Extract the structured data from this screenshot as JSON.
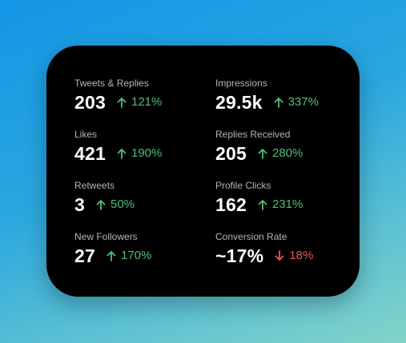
{
  "stats": [
    {
      "label": "Tweets & Replies",
      "value": "203",
      "change": "121%",
      "direction": "up"
    },
    {
      "label": "Impressions",
      "value": "29.5k",
      "change": "337%",
      "direction": "up"
    },
    {
      "label": "Likes",
      "value": "421",
      "change": "190%",
      "direction": "up"
    },
    {
      "label": "Replies Received",
      "value": "205",
      "change": "280%",
      "direction": "up"
    },
    {
      "label": "Retweets",
      "value": "3",
      "change": "50%",
      "direction": "up"
    },
    {
      "label": "Profile Clicks",
      "value": "162",
      "change": "231%",
      "direction": "up"
    },
    {
      "label": "New Followers",
      "value": "27",
      "change": "170%",
      "direction": "up"
    },
    {
      "label": "Conversion Rate",
      "value": "~17%",
      "change": "18%",
      "direction": "down"
    }
  ],
  "icons": {
    "up": "arrow-up-icon",
    "down": "arrow-down-icon"
  },
  "colors": {
    "up": "#4fbf74",
    "down": "#f05454",
    "card_background": "#000000"
  }
}
